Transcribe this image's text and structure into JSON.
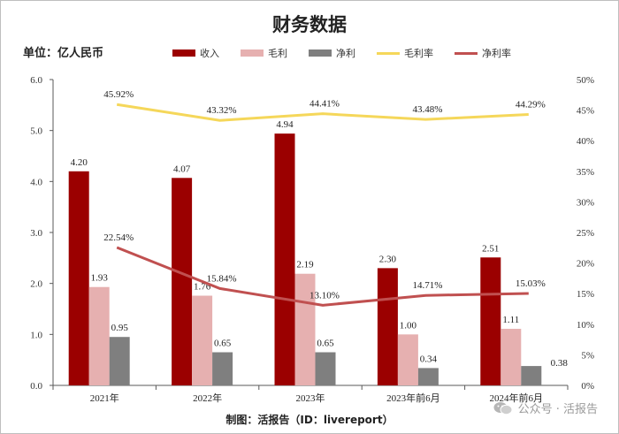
{
  "chart_data": {
    "type": "bar",
    "title": "财务数据",
    "unit_label": "单位：亿人民币",
    "categories": [
      "2021年",
      "2022年",
      "2023年",
      "2023年前6月",
      "2024年前6月"
    ],
    "series": [
      {
        "name": "收入",
        "kind": "bar",
        "axis": "left",
        "color": "#9b0000",
        "values": [
          4.2,
          4.07,
          4.94,
          2.3,
          2.51
        ]
      },
      {
        "name": "毛利",
        "kind": "bar",
        "axis": "left",
        "color": "#e6b0b0",
        "values": [
          1.93,
          1.76,
          2.19,
          1.0,
          1.11
        ]
      },
      {
        "name": "净利",
        "kind": "bar",
        "axis": "left",
        "color": "#7f7f7f",
        "values": [
          0.95,
          0.65,
          0.65,
          0.34,
          0.38
        ]
      },
      {
        "name": "毛利率",
        "kind": "line",
        "axis": "right",
        "color": "#f5d75a",
        "values": [
          45.92,
          43.32,
          44.41,
          43.48,
          44.29
        ],
        "labels": [
          "45.92%",
          "43.32%",
          "44.41%",
          "43.48%",
          "44.29%"
        ]
      },
      {
        "name": "净利率",
        "kind": "line",
        "axis": "right",
        "color": "#c05050",
        "values": [
          22.54,
          15.84,
          13.1,
          14.71,
          15.03
        ],
        "labels": [
          "22.54%",
          "15.84%",
          "13.10%",
          "14.71%",
          "15.03%"
        ]
      }
    ],
    "bar_labels": [
      [
        "4.20",
        "4.07",
        "4.94",
        "2.30",
        "2.51"
      ],
      [
        "1.93",
        "1.76",
        "2.19",
        "1.00",
        "1.11"
      ],
      [
        "0.95",
        "0.65",
        "0.65",
        "0.34",
        "0.38"
      ]
    ],
    "ylim_left": [
      0,
      6
    ],
    "yticks_left": [
      "0.0",
      "1.0",
      "2.0",
      "3.0",
      "4.0",
      "5.0",
      "6.0"
    ],
    "ylim_right": [
      0,
      50
    ],
    "yticks_right": [
      "0%",
      "5%",
      "10%",
      "15%",
      "20%",
      "25%",
      "30%",
      "35%",
      "40%",
      "45%",
      "50%"
    ],
    "legend_position": "top",
    "grid": false
  },
  "caption": "制图：活报告（ID：livereport）",
  "watermark": "公众号 · 活报告"
}
